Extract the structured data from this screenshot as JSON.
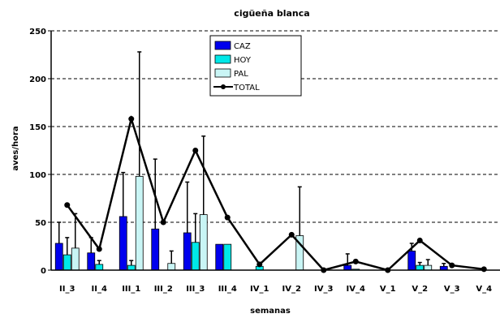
{
  "chart_data": {
    "type": "bar",
    "title": "cigüeña blanca",
    "xlabel": "semanas",
    "ylabel": "aves/hora",
    "ylim": [
      0,
      250
    ],
    "yticks": [
      0,
      50,
      100,
      150,
      200,
      250
    ],
    "grid": "horizontal dashed",
    "legend_position": "top-center",
    "categories": [
      "II_3",
      "II_4",
      "III_1",
      "III_2",
      "III_3",
      "III_4",
      "IV_1",
      "IV_2",
      "IV_3",
      "IV_4",
      "V_1",
      "V_2",
      "V_3",
      "V_4"
    ],
    "series": [
      {
        "name": "CAZ",
        "kind": "bar",
        "color": "#0000ee",
        "values": [
          28,
          18,
          56,
          43,
          39,
          27,
          0,
          0,
          0,
          5,
          0,
          20,
          4,
          0
        ],
        "error": [
          22,
          16,
          46,
          73,
          53,
          0,
          0,
          0,
          0,
          12,
          0,
          8,
          3,
          0
        ]
      },
      {
        "name": "HOY",
        "kind": "bar",
        "color": "#00e8e8",
        "values": [
          16,
          6,
          5,
          0,
          29,
          27,
          4,
          0,
          0,
          1,
          0,
          5,
          0,
          0
        ],
        "error": [
          18,
          4,
          5,
          0,
          30,
          0,
          0,
          0,
          0,
          0,
          0,
          3,
          0,
          0
        ]
      },
      {
        "name": "PAL",
        "kind": "bar",
        "color": "#c9f5f5",
        "values": [
          23,
          0,
          98,
          7,
          58,
          0,
          0,
          36,
          0,
          0,
          0,
          5,
          0,
          0
        ],
        "error": [
          36,
          0,
          130,
          13,
          82,
          0,
          0,
          51,
          0,
          0,
          0,
          6,
          0,
          0
        ]
      },
      {
        "name": "TOTAL",
        "kind": "line",
        "color": "#000000",
        "values": [
          68,
          22,
          158,
          50,
          125,
          55,
          6,
          37,
          0,
          9,
          0,
          31,
          5,
          1
        ]
      }
    ]
  }
}
